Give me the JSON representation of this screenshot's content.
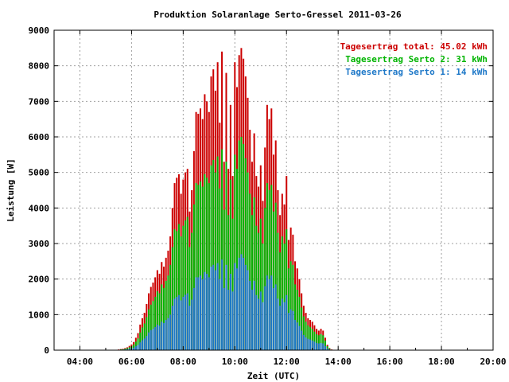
{
  "chart_data": {
    "type": "bar",
    "title": "Produktion Solaranlage Serto-Gressel 2011-03-26",
    "xlabel": "Zeit (UTC)",
    "ylabel": "Leistung [W]",
    "xlim": [
      3.0,
      20.0
    ],
    "ylim": [
      0,
      9000
    ],
    "x_ticks": [
      4,
      6,
      8,
      10,
      12,
      14,
      16,
      18,
      20
    ],
    "x_tick_labels": [
      "04:00",
      "06:00",
      "08:00",
      "10:00",
      "12:00",
      "14:00",
      "16:00",
      "18:00",
      "20:00"
    ],
    "y_ticks": [
      0,
      1000,
      2000,
      3000,
      4000,
      5000,
      6000,
      7000,
      8000,
      9000
    ],
    "y_tick_labels": [
      "0",
      "1000",
      "2000",
      "3000",
      "4000",
      "5000",
      "6000",
      "7000",
      "8000",
      "9000"
    ],
    "grid": true,
    "legend_position": "top-right",
    "legend": [
      {
        "text": "Tagesertrag total: 45.02 kWh",
        "color": "#cc0000"
      },
      {
        "text": "Tagesertrag Serto 2: 31 kWh",
        "color": "#00b400"
      },
      {
        "text": "Tagesertrag Serto 1: 14 kWh",
        "color": "#1e78c8"
      }
    ],
    "colors": {
      "total": "#cc0000",
      "serto2": "#00b400",
      "serto1": "#1e78c8"
    },
    "start_time": 5.5,
    "interval_minutes": 5,
    "series": [
      {
        "name": "Total",
        "values": [
          20,
          30,
          40,
          60,
          80,
          120,
          160,
          230,
          350,
          480,
          720,
          900,
          1050,
          1300,
          1600,
          1780,
          1900,
          2050,
          2250,
          2150,
          2480,
          2350,
          2600,
          2800,
          3200,
          4000,
          4700,
          4850,
          4950,
          4400,
          4800,
          5000,
          5100,
          3900,
          4500,
          5600,
          6700,
          6650,
          6800,
          6500,
          7200,
          7000,
          6700,
          7700,
          7900,
          7300,
          8100,
          6400,
          8400,
          5300,
          7800,
          5100,
          6900,
          4900,
          8100,
          7400,
          8300,
          8500,
          8200,
          7700,
          7100,
          6200,
          5300,
          6100,
          4900,
          4600,
          5200,
          4200,
          5700,
          6900,
          6500,
          6800,
          5500,
          5900,
          4500,
          3800,
          4400,
          4100,
          4900,
          3100,
          3450,
          3250,
          2500,
          2300,
          2000,
          1600,
          1250,
          1050,
          900,
          850,
          800,
          700,
          600,
          550,
          600,
          550,
          350,
          150,
          60,
          20
        ],
        "color": "#cc0000"
      },
      {
        "name": "Serto 2",
        "values": [
          10,
          20,
          25,
          40,
          55,
          80,
          110,
          160,
          240,
          330,
          500,
          640,
          750,
          930,
          1150,
          1280,
          1380,
          1500,
          1660,
          1600,
          1850,
          1750,
          1950,
          2100,
          2400,
          2900,
          3400,
          3350,
          3550,
          3200,
          3500,
          3650,
          3750,
          2900,
          3300,
          4100,
          4700,
          4650,
          4750,
          4600,
          4950,
          4850,
          4700,
          5200,
          5350,
          5000,
          5450,
          4550,
          5650,
          3950,
          5300,
          3800,
          4800,
          3700,
          5500,
          5100,
          5900,
          6000,
          5800,
          5400,
          5000,
          4400,
          3800,
          4300,
          3500,
          3300,
          3700,
          3000,
          4000,
          4700,
          4500,
          4650,
          3900,
          4150,
          3300,
          2750,
          3200,
          3000,
          3400,
          2300,
          2500,
          2400,
          1850,
          1700,
          1500,
          1200,
          950,
          800,
          700,
          650,
          600,
          520,
          450,
          420,
          450,
          420,
          270,
          110,
          40,
          10
        ],
        "color": "#00b400"
      },
      {
        "name": "Serto 1",
        "values": [
          5,
          10,
          15,
          20,
          25,
          40,
          50,
          70,
          110,
          150,
          220,
          280,
          330,
          400,
          500,
          560,
          600,
          650,
          720,
          690,
          800,
          760,
          850,
          900,
          1000,
          1250,
          1450,
          1500,
          1550,
          1400,
          1500,
          1560,
          1600,
          1250,
          1420,
          1750,
          2050,
          2050,
          2100,
          2000,
          2200,
          2150,
          2050,
          2350,
          2400,
          2250,
          2450,
          2000,
          2550,
          1750,
          2400,
          1700,
          2150,
          1650,
          2450,
          2300,
          2600,
          2700,
          2600,
          2400,
          2250,
          1950,
          1700,
          1950,
          1550,
          1450,
          1650,
          1350,
          1800,
          2100,
          2000,
          2100,
          1750,
          1850,
          1450,
          1250,
          1450,
          1350,
          1550,
          1050,
          1150,
          1100,
          850,
          780,
          680,
          550,
          430,
          360,
          320,
          300,
          270,
          240,
          200,
          190,
          200,
          190,
          120,
          50,
          20,
          5
        ],
        "color": "#1e78c8"
      }
    ]
  }
}
